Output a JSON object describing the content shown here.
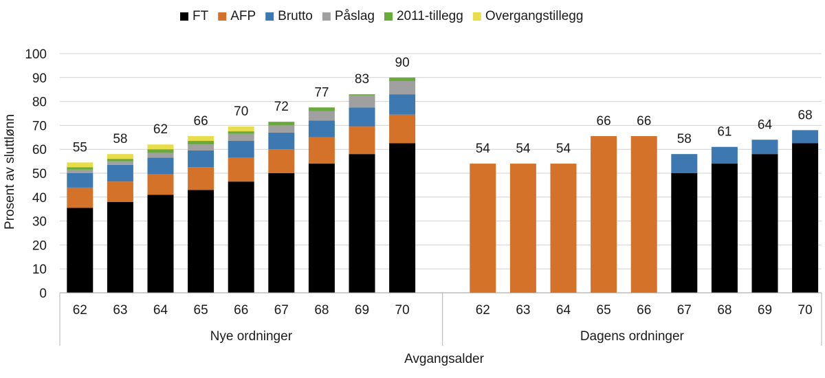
{
  "chart_data": {
    "type": "bar",
    "stacked": true,
    "xlabel": "Avgangsalder",
    "ylabel": "Prosent av sluttlønn",
    "ylim": [
      0,
      100
    ],
    "yticks": [
      0,
      10,
      20,
      30,
      40,
      50,
      60,
      70,
      80,
      90,
      100
    ],
    "grid": true,
    "legend_position": "top-center",
    "series": [
      {
        "name": "FT",
        "color": "#000000"
      },
      {
        "name": "AFP",
        "color": "#D57229"
      },
      {
        "name": "Brutto",
        "color": "#3E78B0"
      },
      {
        "name": "Påslag",
        "color": "#A0A0A0"
      },
      {
        "name": "2011-tillegg",
        "color": "#6AAA3A"
      },
      {
        "name": "Overgangstillegg",
        "color": "#E8DE4C"
      }
    ],
    "groups": [
      {
        "name": "Nye ordninger",
        "bars": [
          {
            "category": "62",
            "total_label": "55",
            "segments": [
              35.5,
              8.5,
              6,
              1.5,
              1,
              2
            ]
          },
          {
            "category": "63",
            "total_label": "58",
            "segments": [
              38,
              8.5,
              7,
              1.5,
              1,
              2
            ]
          },
          {
            "category": "64",
            "total_label": "62",
            "segments": [
              41,
              8.5,
              7,
              2,
              1.5,
              2
            ]
          },
          {
            "category": "65",
            "total_label": "66",
            "segments": [
              43,
              9.5,
              7,
              2.5,
              1.5,
              2
            ]
          },
          {
            "category": "66",
            "total_label": "70",
            "segments": [
              46.5,
              10,
              7,
              3,
              1,
              2
            ]
          },
          {
            "category": "67",
            "total_label": "72",
            "segments": [
              50,
              10,
              7,
              3,
              1.5,
              0
            ]
          },
          {
            "category": "68",
            "total_label": "77",
            "segments": [
              54,
              11,
              7,
              4,
              1.5,
              0
            ]
          },
          {
            "category": "69",
            "total_label": "83",
            "segments": [
              58,
              11.5,
              8,
              5,
              0.5,
              0
            ]
          },
          {
            "category": "70",
            "total_label": "90",
            "segments": [
              62.5,
              12,
              8.5,
              5.5,
              1.5,
              0
            ]
          }
        ]
      },
      {
        "name": "Dagens ordninger",
        "bars": [
          {
            "category": "62",
            "total_label": "54",
            "segments": [
              0,
              54,
              0,
              0,
              0,
              0
            ]
          },
          {
            "category": "63",
            "total_label": "54",
            "segments": [
              0,
              54,
              0,
              0,
              0,
              0
            ]
          },
          {
            "category": "64",
            "total_label": "54",
            "segments": [
              0,
              54,
              0,
              0,
              0,
              0
            ]
          },
          {
            "category": "65",
            "total_label": "66",
            "segments": [
              0,
              65.5,
              0,
              0,
              0,
              0
            ]
          },
          {
            "category": "66",
            "total_label": "66",
            "segments": [
              0,
              65.5,
              0,
              0,
              0,
              0
            ]
          },
          {
            "category": "67",
            "total_label": "58",
            "segments": [
              50,
              0,
              8,
              0,
              0,
              0
            ]
          },
          {
            "category": "68",
            "total_label": "61",
            "segments": [
              54,
              0,
              7,
              0,
              0,
              0
            ]
          },
          {
            "category": "69",
            "total_label": "64",
            "segments": [
              58,
              0,
              6,
              0,
              0,
              0
            ]
          },
          {
            "category": "70",
            "total_label": "68",
            "segments": [
              62.5,
              0,
              5.5,
              0,
              0,
              0
            ]
          }
        ]
      }
    ]
  }
}
